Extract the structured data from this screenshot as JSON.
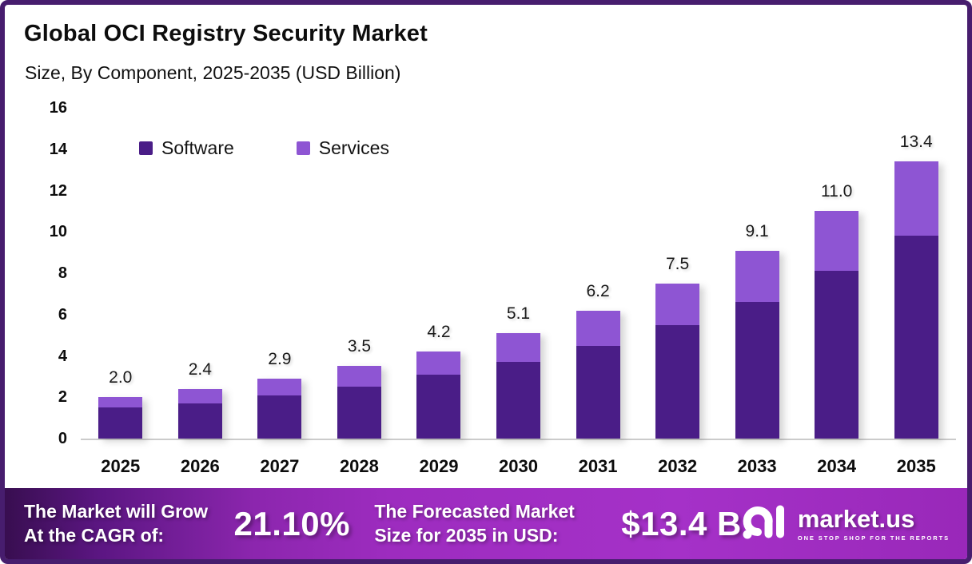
{
  "header": {
    "title": "Global OCI Registry Security Market",
    "subtitle": "Size, By Component, 2025-2035 (USD Billion)"
  },
  "colors": {
    "software": "#4a1d87",
    "services": "#8e55d3",
    "page_border": "#471d6e",
    "footer_gradient_left": "#380e50",
    "footer_gradient_right": "#a531c8",
    "axis_line": "#cbcbcb"
  },
  "legend": [
    {
      "label": "Software",
      "color": "#4a1d87"
    },
    {
      "label": "Services",
      "color": "#8e55d3"
    }
  ],
  "chart_data": {
    "type": "bar",
    "stacked": true,
    "title": "Global OCI Registry Security Market Size, By Component, 2025-2035 (USD Billion)",
    "xlabel": "",
    "ylabel": "",
    "categories": [
      "2025",
      "2026",
      "2027",
      "2028",
      "2029",
      "2030",
      "2031",
      "2032",
      "2033",
      "2034",
      "2035"
    ],
    "series": [
      {
        "name": "Software",
        "color": "#4a1d87",
        "values": [
          1.5,
          1.7,
          2.1,
          2.5,
          3.1,
          3.7,
          4.5,
          5.5,
          6.6,
          8.1,
          9.8
        ]
      },
      {
        "name": "Services",
        "color": "#8e55d3",
        "values": [
          0.5,
          0.7,
          0.8,
          1.0,
          1.1,
          1.4,
          1.7,
          2.0,
          2.5,
          2.9,
          3.6
        ]
      }
    ],
    "total_labels": [
      "2.0",
      "2.4",
      "2.9",
      "3.5",
      "4.2",
      "5.1",
      "6.2",
      "7.5",
      "9.1",
      "11.0",
      "13.4"
    ],
    "y_ticks": [
      "0",
      "2",
      "4",
      "6",
      "8",
      "10",
      "12",
      "14",
      "16"
    ],
    "ylim": [
      0,
      16
    ],
    "grid": false,
    "legend_position": "top-left-inside"
  },
  "footer": {
    "cagr_label_line1": "The Market will Grow",
    "cagr_label_line2": "At the CAGR of:",
    "cagr_value": "21.10%",
    "forecast_label_line1": "The Forecasted Market",
    "forecast_label_line2": "Size for 2035 in USD:",
    "forecast_value": "$13.4 B",
    "brand": {
      "name": "market.us",
      "tagline": "ONE STOP SHOP FOR THE REPORTS"
    }
  }
}
